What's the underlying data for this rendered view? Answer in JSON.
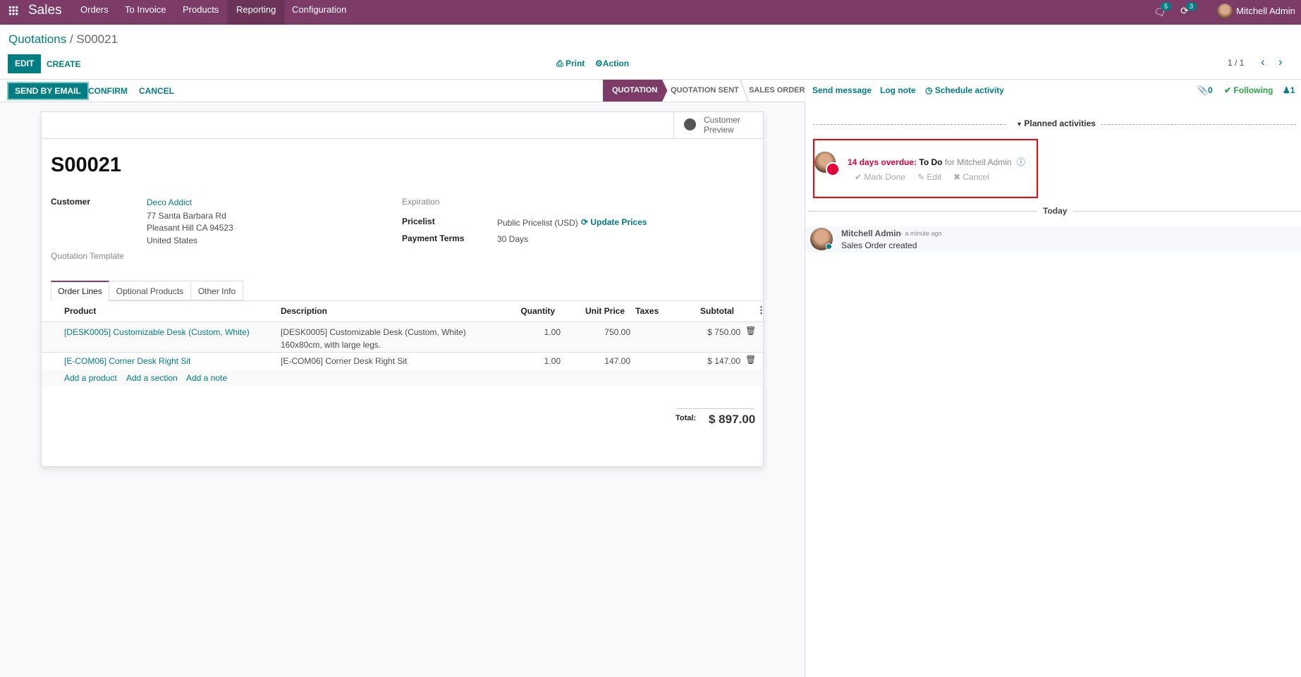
{
  "navbar": {
    "app": "Sales",
    "menu": [
      "Orders",
      "To Invoice",
      "Products",
      "Reporting",
      "Configuration"
    ],
    "messages_count": "5",
    "activities_count": "3",
    "user": "Mitchell Admin",
    "icons": [
      "apps-grid-icon",
      "chat-icon",
      "clock-icon"
    ]
  },
  "breadcrumb": {
    "parent": "Quotations",
    "separator": " / ",
    "current": "S00021"
  },
  "control": {
    "edit": "EDIT",
    "create": "CREATE",
    "print": "Print",
    "action": "Action",
    "pager": "1 / 1"
  },
  "statusbar": {
    "buttons": [
      "SEND BY EMAIL",
      "CONFIRM",
      "CANCEL"
    ],
    "stages": [
      "QUOTATION",
      "QUOTATION SENT",
      "SALES ORDER"
    ],
    "active_stage": "QUOTATION"
  },
  "form": {
    "preview_line1": "Customer",
    "preview_line2": "Preview",
    "title": "S00021",
    "customer_label": "Customer",
    "customer": "Deco Addict",
    "address": [
      "77 Santa Barbara Rd",
      "Pleasant Hill CA 94523",
      "United States"
    ],
    "template_label": "Quotation Template",
    "expiration_label": "Expiration",
    "pricelist_label": "Pricelist",
    "pricelist": "Public Pricelist (USD)",
    "update_prices": "Update Prices",
    "terms_label": "Payment Terms",
    "terms": "30 Days",
    "tabs": [
      "Order Lines",
      "Optional Products",
      "Other Info"
    ],
    "columns": [
      "Product",
      "Description",
      "Quantity",
      "Unit Price",
      "Taxes",
      "Subtotal"
    ],
    "lines": [
      {
        "product": "[DESK0005] Customizable Desk (Custom, White)",
        "desc1": "[DESK0005] Customizable Desk (Custom, White)",
        "desc2": "160x80cm, with large legs.",
        "qty": "1.00",
        "price": "750.00",
        "taxes": "",
        "subtotal": "$ 750.00"
      },
      {
        "product": "[E-COM06] Corner Desk Right Sit",
        "desc1": "[E-COM06] Corner Desk Right Sit",
        "desc2": "",
        "qty": "1.00",
        "price": "147.00",
        "taxes": "",
        "subtotal": "$ 147.00"
      }
    ],
    "add_links": [
      "Add a product",
      "Add a section",
      "Add a note"
    ],
    "total_label": "Total:",
    "total": "$ 897.00"
  },
  "chatter": {
    "send_message": "Send message",
    "log_note": "Log note",
    "schedule": "Schedule activity",
    "attachments": "0",
    "following": "Following",
    "followers": "1",
    "planned": "Planned activities",
    "overdue": "14 days overdue:",
    "activity_type": "To Do",
    "for_user": "for Mitchell Admin",
    "mark_done": "Mark Done",
    "edit": "Edit",
    "cancel": "Cancel",
    "today": "Today",
    "author": "Mitchell Admin",
    "time": "- a minute ago",
    "message": "Sales Order created"
  },
  "colors": {
    "brand": "#7c3c67",
    "accent": "#017e84",
    "overdue": "#e6003a",
    "highlight_box": "#ff0000"
  }
}
